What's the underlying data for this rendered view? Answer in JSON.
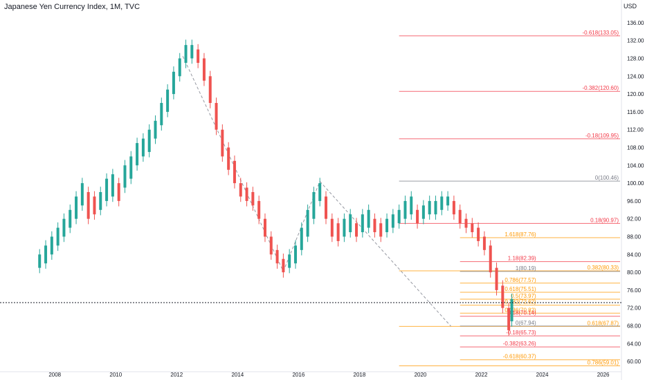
{
  "header": {
    "title": "Japanese Yen Currency Index, 1M, TVC",
    "currency": "USD"
  },
  "chart_data": {
    "type": "candlestick",
    "title": "Japanese Yen Currency Index, 1M, TVC",
    "ylabel": "USD",
    "ylim": [
      58,
      138
    ],
    "xlim": [
      2006.2,
      2026.6
    ],
    "y_ticks": [
      "60.00",
      "64.00",
      "68.00",
      "72.00",
      "76.00",
      "80.00",
      "84.00",
      "88.00",
      "92.00",
      "96.00",
      "100.00",
      "104.00",
      "108.00",
      "112.00",
      "116.00",
      "120.00",
      "124.00",
      "128.00",
      "132.00",
      "136.00"
    ],
    "x_ticks": [
      "2008",
      "2010",
      "2012",
      "2014",
      "2016",
      "2018",
      "2020",
      "2022",
      "2024",
      "2026"
    ],
    "current_price_line": 73.2,
    "candles_approx": [
      [
        2007.5,
        81,
        84
      ],
      [
        2007.7,
        82,
        86
      ],
      [
        2007.9,
        84,
        88
      ],
      [
        2008.1,
        86,
        90
      ],
      [
        2008.3,
        88,
        92
      ],
      [
        2008.5,
        90,
        94
      ],
      [
        2008.7,
        92,
        97
      ],
      [
        2008.9,
        95,
        100
      ],
      [
        2009.1,
        92,
        98
      ],
      [
        2009.3,
        93,
        97
      ],
      [
        2009.5,
        94,
        98
      ],
      [
        2009.7,
        96,
        101
      ],
      [
        2009.9,
        97,
        102
      ],
      [
        2010.1,
        96,
        100
      ],
      [
        2010.3,
        99,
        104
      ],
      [
        2010.5,
        101,
        106
      ],
      [
        2010.7,
        104,
        109
      ],
      [
        2010.9,
        106,
        110
      ],
      [
        2011.1,
        107,
        112
      ],
      [
        2011.3,
        110,
        114
      ],
      [
        2011.5,
        113,
        118
      ],
      [
        2011.7,
        116,
        121
      ],
      [
        2011.9,
        120,
        125
      ],
      [
        2012.1,
        124,
        128
      ],
      [
        2012.3,
        127,
        131
      ],
      [
        2012.5,
        128,
        131
      ],
      [
        2012.7,
        127,
        130
      ],
      [
        2012.9,
        123,
        128
      ],
      [
        2013.1,
        118,
        124
      ],
      [
        2013.3,
        112,
        118
      ],
      [
        2013.5,
        106,
        112
      ],
      [
        2013.7,
        103,
        108
      ],
      [
        2013.9,
        100,
        105
      ],
      [
        2014.1,
        97,
        100
      ],
      [
        2014.3,
        96,
        99
      ],
      [
        2014.5,
        95,
        98
      ],
      [
        2014.7,
        92,
        96
      ],
      [
        2014.9,
        88,
        92
      ],
      [
        2015.1,
        84,
        88
      ],
      [
        2015.3,
        82,
        85
      ],
      [
        2015.5,
        80,
        83
      ],
      [
        2015.7,
        81,
        84
      ],
      [
        2015.9,
        82,
        86
      ],
      [
        2016.1,
        85,
        90
      ],
      [
        2016.3,
        88,
        94
      ],
      [
        2016.5,
        92,
        98
      ],
      [
        2016.7,
        96,
        100
      ],
      [
        2016.9,
        92,
        97
      ],
      [
        2017.1,
        88,
        92
      ],
      [
        2017.3,
        87,
        91
      ],
      [
        2017.5,
        88,
        92
      ],
      [
        2017.7,
        89,
        93
      ],
      [
        2017.9,
        88,
        91
      ],
      [
        2018.1,
        89,
        93
      ],
      [
        2018.3,
        90,
        94
      ],
      [
        2018.5,
        89,
        92
      ],
      [
        2018.7,
        88,
        91
      ],
      [
        2018.9,
        89,
        92
      ],
      [
        2019.1,
        90,
        93
      ],
      [
        2019.3,
        91,
        94
      ],
      [
        2019.5,
        92,
        96
      ],
      [
        2019.7,
        93,
        97
      ],
      [
        2019.9,
        91,
        94
      ],
      [
        2020.1,
        92,
        95
      ],
      [
        2020.3,
        93,
        96
      ],
      [
        2020.5,
        93,
        96
      ],
      [
        2020.7,
        94,
        97
      ],
      [
        2020.9,
        95,
        97
      ],
      [
        2021.1,
        93,
        96
      ],
      [
        2021.3,
        91,
        94
      ],
      [
        2021.5,
        90,
        92
      ],
      [
        2021.7,
        89,
        91
      ],
      [
        2021.9,
        87,
        90
      ],
      [
        2022.1,
        85,
        88
      ],
      [
        2022.3,
        80,
        86
      ],
      [
        2022.5,
        76,
        81
      ],
      [
        2022.7,
        72,
        77
      ],
      [
        2022.9,
        67,
        72
      ],
      [
        2023.0,
        69,
        74
      ]
    ],
    "trend_lines": [
      {
        "from": [
          2012.2,
          128.5
        ],
        "to": [
          2015.5,
          80.2
        ],
        "style": "dashed"
      },
      {
        "from": [
          2015.5,
          80.2
        ],
        "to": [
          2016.7,
          100.4
        ],
        "style": "dashed"
      },
      {
        "from": [
          2016.7,
          100.4
        ],
        "to": [
          2021.0,
          67.9
        ],
        "style": "dashed"
      }
    ],
    "fib_levels": [
      {
        "label": "-0.618(133.05)",
        "value": 133.05,
        "x_start": 2019.3,
        "color": "#f23645",
        "label_side": "right"
      },
      {
        "label": "-0.382(120.60)",
        "value": 120.6,
        "x_start": 2019.3,
        "color": "#f23645",
        "label_side": "right"
      },
      {
        "label": "-0.18(109.95)",
        "value": 109.95,
        "x_start": 2019.3,
        "color": "#f23645",
        "label_side": "right"
      },
      {
        "label": "0(100.46)",
        "value": 100.46,
        "x_start": 2019.3,
        "color": "#787b86",
        "label_side": "right"
      },
      {
        "label": "0.18(90.97)",
        "value": 90.97,
        "x_start": 2019.3,
        "color": "#f23645",
        "label_side": "right"
      },
      {
        "label": "0.382(80.33)",
        "value": 80.33,
        "x_start": 2019.3,
        "color": "#ff9800",
        "label_side": "right"
      },
      {
        "label": "0.618(67.87)",
        "value": 67.87,
        "x_start": 2019.3,
        "color": "#ff9800",
        "label_side": "right"
      },
      {
        "label": "0.786(59.01)",
        "value": 59.01,
        "x_start": 2019.3,
        "color": "#ff9800",
        "label_side": "right"
      },
      {
        "label": "1.618(87.76)",
        "value": 87.76,
        "x_start": 2021.3,
        "color": "#ff9800",
        "label_side": "left"
      },
      {
        "label": "1.18(82.39)",
        "value": 82.39,
        "x_start": 2021.3,
        "color": "#f23645",
        "label_side": "left"
      },
      {
        "label": "1(80.19)",
        "value": 80.19,
        "x_start": 2021.3,
        "color": "#787b86",
        "label_side": "left"
      },
      {
        "label": "0.786(77.57)",
        "value": 77.57,
        "x_start": 2021.3,
        "color": "#ff9800",
        "label_side": "left"
      },
      {
        "label": "0.618(75.51)",
        "value": 75.51,
        "x_start": 2021.3,
        "color": "#ff9800",
        "label_side": "left"
      },
      {
        "label": "0.5(73.97)",
        "value": 73.97,
        "x_start": 2021.3,
        "color": "#ff9800",
        "label_side": "left"
      },
      {
        "label": "0.382(72.62)",
        "value": 72.62,
        "x_start": 2021.3,
        "color": "#ff9800",
        "label_side": "left"
      },
      {
        "label": "0.236(70.82)",
        "value": 70.82,
        "x_start": 2021.3,
        "color": "#ff9800",
        "label_side": "left"
      },
      {
        "label": "0.18(70.14)",
        "value": 70.14,
        "x_start": 2021.3,
        "color": "#f23645",
        "label_side": "left"
      },
      {
        "label": "0(67.94)",
        "value": 67.94,
        "x_start": 2021.3,
        "color": "#787b86",
        "label_side": "left"
      },
      {
        "label": "-0.18(65.73)",
        "value": 65.73,
        "x_start": 2021.3,
        "color": "#f23645",
        "label_side": "left"
      },
      {
        "label": "-0.382(63.26)",
        "value": 63.26,
        "x_start": 2021.3,
        "color": "#f23645",
        "label_side": "left"
      },
      {
        "label": "-0.618(60.37)",
        "value": 60.37,
        "x_start": 2021.3,
        "color": "#ff9800",
        "label_side": "left"
      }
    ],
    "colors": {
      "up": "#26a69a",
      "down": "#ef5350",
      "dashed": "#9598a1",
      "axis_text": "#131722"
    }
  }
}
